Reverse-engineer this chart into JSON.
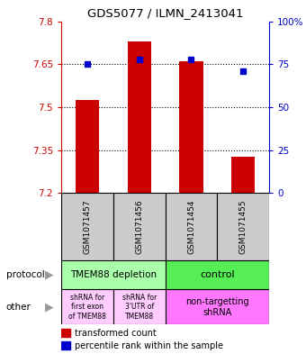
{
  "title": "GDS5077 / ILMN_2413041",
  "samples": [
    "GSM1071457",
    "GSM1071456",
    "GSM1071454",
    "GSM1071455"
  ],
  "red_values": [
    7.525,
    7.73,
    7.66,
    7.325
  ],
  "blue_values": [
    75,
    78,
    78,
    71
  ],
  "ylim_left": [
    7.2,
    7.8
  ],
  "ylim_right": [
    0,
    100
  ],
  "yticks_left": [
    7.2,
    7.35,
    7.5,
    7.65,
    7.8
  ],
  "yticks_right": [
    0,
    25,
    50,
    75,
    100
  ],
  "ytick_labels_left": [
    "7.2",
    "7.35",
    "7.5",
    "7.65",
    "7.8"
  ],
  "ytick_labels_right": [
    "0",
    "25",
    "50",
    "75",
    "100%"
  ],
  "hgrid_values": [
    7.35,
    7.5,
    7.65
  ],
  "bar_bottom": 7.2,
  "bar_width": 0.45,
  "red_color": "#cc0000",
  "blue_color": "#0000cc",
  "protocol_labels": [
    "TMEM88 depletion",
    "control"
  ],
  "protocol_colors": [
    "#aaffaa",
    "#55ee55"
  ],
  "other_labels": [
    "shRNA for\nfirst exon\nof TMEM88",
    "shRNA for\n3'UTR of\nTMEM88",
    "non-targetting\nshRNA"
  ],
  "other_colors": [
    "#ffccff",
    "#ffccff",
    "#ff77ff"
  ],
  "legend_red": "transformed count",
  "legend_blue": "percentile rank within the sample",
  "background_color": "#ffffff"
}
